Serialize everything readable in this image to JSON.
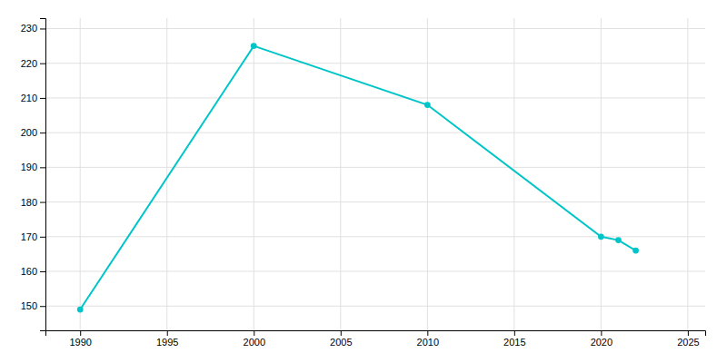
{
  "chart_data": {
    "type": "line",
    "x": [
      1990,
      2000,
      2010,
      2020,
      2021,
      2022
    ],
    "values": [
      149,
      225,
      208,
      170,
      169,
      166
    ],
    "color": "#00C5C8",
    "marker": "circle",
    "xlim": [
      1988,
      2026
    ],
    "ylim": [
      143,
      233
    ],
    "xticks": [
      1990,
      1995,
      2000,
      2005,
      2010,
      2015,
      2020,
      2025
    ],
    "yticks": [
      150,
      160,
      170,
      180,
      190,
      200,
      210,
      220,
      230
    ],
    "grid": true
  }
}
